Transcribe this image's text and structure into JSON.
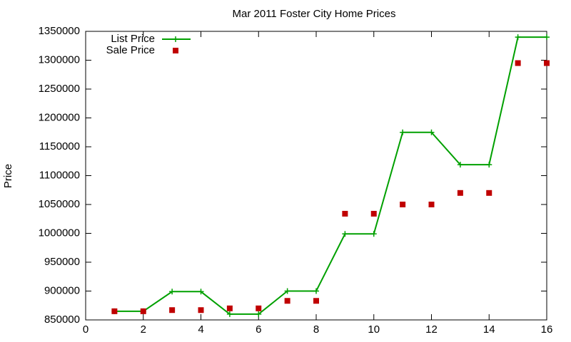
{
  "chart_data": {
    "type": "line",
    "title": "Mar 2011 Foster City Home Prices",
    "y_label": "Price",
    "x": [
      1,
      2,
      3,
      4,
      5,
      6,
      7,
      8,
      9,
      10,
      11,
      12,
      13,
      14,
      15,
      16
    ],
    "series": [
      {
        "name": "List Price",
        "color": "#00a000",
        "marker": "plus",
        "line": true,
        "values": [
          865000,
          865000,
          899000,
          899000,
          860000,
          860000,
          900000,
          900000,
          999000,
          999000,
          1175000,
          1175000,
          1119000,
          1119000,
          1340000,
          1340000
        ]
      },
      {
        "name": "Sale Price",
        "color": "#c00000",
        "marker": "square",
        "line": false,
        "values": [
          865000,
          865000,
          867000,
          867000,
          870000,
          870000,
          883000,
          883000,
          1034000,
          1034000,
          1050000,
          1050000,
          1070000,
          1070000,
          1295000,
          1295000
        ]
      }
    ],
    "xlim": [
      0,
      16
    ],
    "xticks": [
      0,
      2,
      4,
      6,
      8,
      10,
      12,
      14,
      16
    ],
    "ylim": [
      850000,
      1350000
    ],
    "yticks": [
      850000,
      900000,
      950000,
      1000000,
      1050000,
      1100000,
      1150000,
      1200000,
      1250000,
      1300000,
      1350000
    ],
    "legend": "top-left"
  }
}
